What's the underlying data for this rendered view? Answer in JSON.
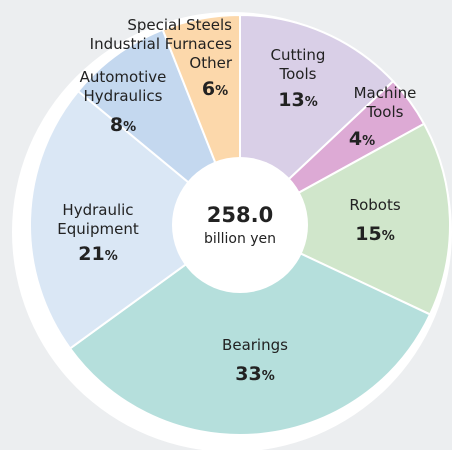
{
  "chart_data": {
    "type": "donut",
    "center_value": "258.0",
    "center_unit": "billion yen",
    "categories": [
      "Cutting\nTools",
      "Machine\nTools",
      "Robots",
      "Bearings",
      "Hydraulic\nEquipment",
      "Automotive\nHydraulics",
      "Special Steels\nIndustrial Furnaces\nOther"
    ],
    "values": [
      13,
      4,
      15,
      33,
      21,
      8,
      6
    ],
    "value_labels": [
      "13%",
      "4%",
      "15%",
      "33%",
      "21%",
      "8%",
      "6%"
    ],
    "colors": [
      "#d9cfe7",
      "#ddaad5",
      "#d0e6cb",
      "#b5dfdc",
      "#dae7f5",
      "#c4d8ef",
      "#fcd8ab"
    ]
  }
}
